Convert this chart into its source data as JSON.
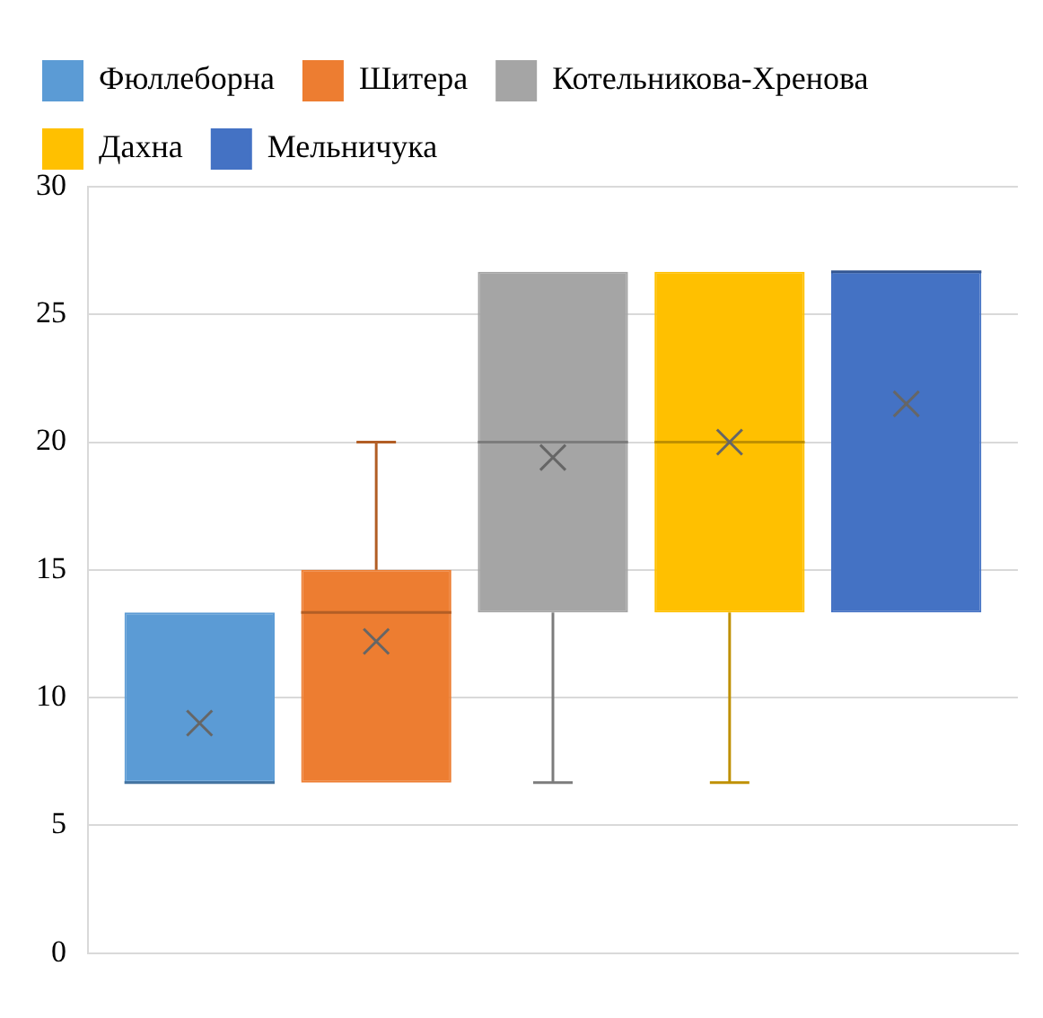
{
  "chart_data": {
    "type": "box",
    "categories": [
      null
    ],
    "ylim": [
      0,
      30
    ],
    "yticks": [
      0,
      5,
      10,
      15,
      20,
      25,
      30
    ],
    "grid": "y",
    "legend": "top",
    "tick_labels": "y",
    "marker": "cross",
    "series": [
      {
        "name": "Фюллеборна",
        "color": "#5b9bd5",
        "boxes": [
          {
            "low": 6.67,
            "q1": 6.67,
            "median": 6.67,
            "q3": 13.33,
            "high": 13.33,
            "mean": 9
          }
        ]
      },
      {
        "name": "Шитера",
        "color": "#ed7d31",
        "boxes": [
          {
            "low": 6.67,
            "q1": 6.67,
            "median": 13.33,
            "q3": 15,
            "high": 20,
            "mean": 12.2
          }
        ]
      },
      {
        "name": "Котельникова-Хренова",
        "color": "#a5a5a5",
        "boxes": [
          {
            "low": 6.67,
            "q1": 13.33,
            "median": 20,
            "q3": 26.67,
            "high": 26.67,
            "mean": 19.4
          }
        ]
      },
      {
        "name": "Дахна",
        "color": "#ffc000",
        "boxes": [
          {
            "low": 6.67,
            "q1": 13.33,
            "median": 20,
            "q3": 26.67,
            "high": 26.67,
            "mean": 20
          }
        ]
      },
      {
        "name": "Мельничука",
        "color": "#4472c4",
        "boxes": [
          {
            "low": 13.33,
            "q1": 13.33,
            "median": 26.67,
            "q3": 26.67,
            "high": 26.67,
            "mean": 21.5
          }
        ]
      }
    ]
  }
}
